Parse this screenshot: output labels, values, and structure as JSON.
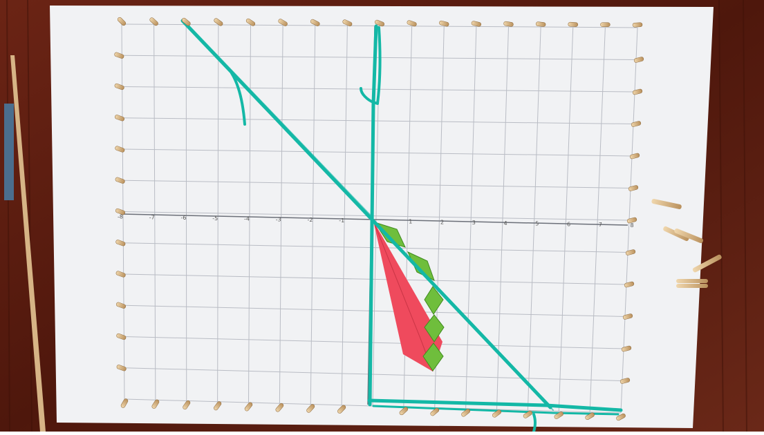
{
  "scene": {
    "description_colors": {
      "table_wood": "#5a1c10",
      "paper": "#f1f2f4",
      "grid_line": "#b9bcc4",
      "axis_line": "#6b6f78",
      "yarn": "#14b8a6",
      "peg": "#d8b88a",
      "red_paper": "#ef4a5d",
      "green_paper": "#6fbe3c"
    }
  },
  "x_axis_labels": [
    "-8",
    "-7",
    "-6",
    "-5",
    "-4",
    "-3",
    "-2",
    "-1",
    "1",
    "2",
    "3",
    "4",
    "5",
    "6",
    "7",
    "8"
  ]
}
